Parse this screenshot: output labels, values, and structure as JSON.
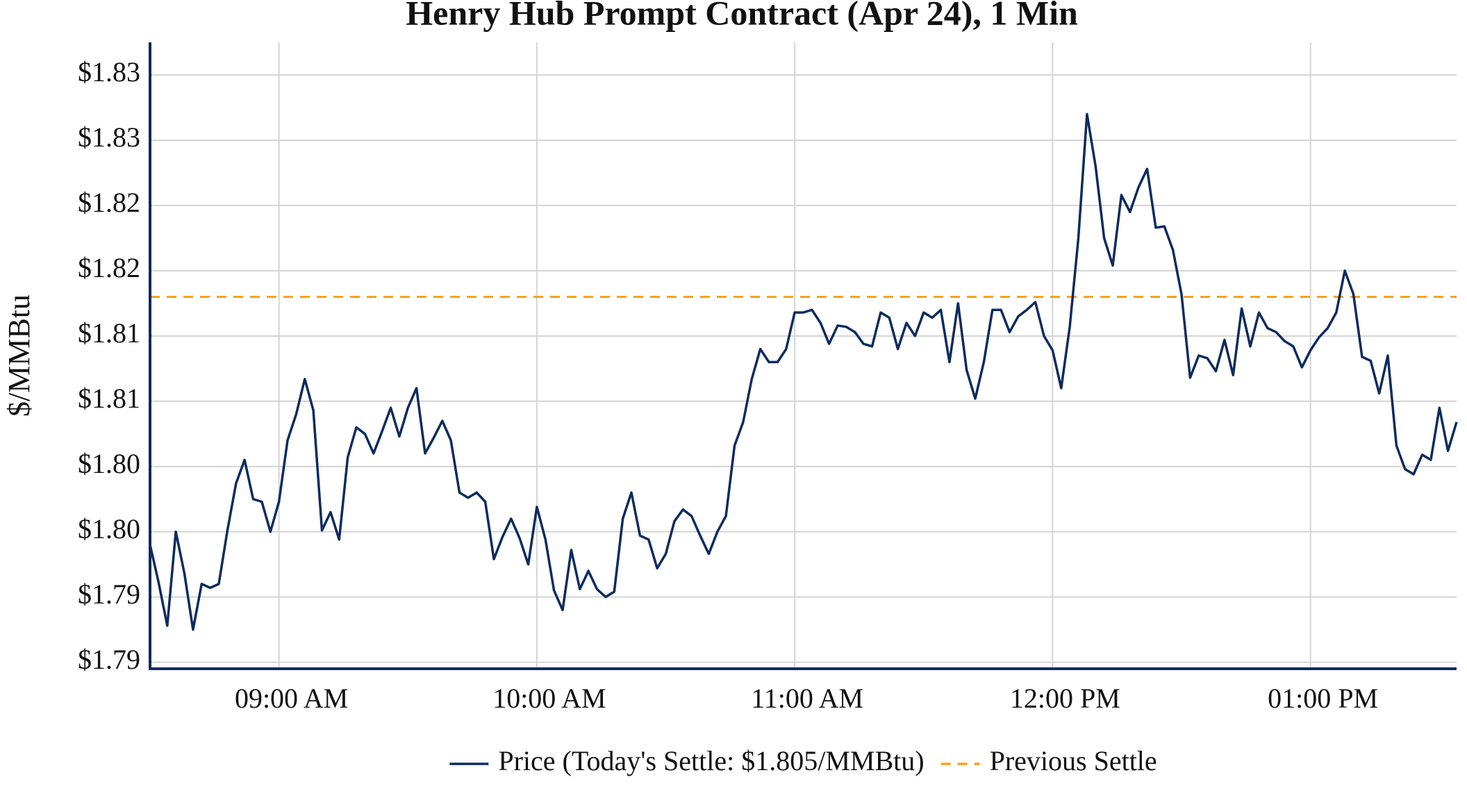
{
  "chart_data": {
    "type": "line",
    "title": "Henry Hub Prompt Contract (Apr 24), 1 Min",
    "y_label": "$/MMBtu",
    "x": [
      "08:30",
      "08:32",
      "08:34",
      "08:36",
      "08:38",
      "08:40",
      "08:42",
      "08:44",
      "08:46",
      "08:48",
      "08:50",
      "08:52",
      "08:54",
      "08:56",
      "08:58",
      "09:00",
      "09:02",
      "09:04",
      "09:06",
      "09:08",
      "09:10",
      "09:12",
      "09:14",
      "09:16",
      "09:18",
      "09:20",
      "09:22",
      "09:24",
      "09:26",
      "09:28",
      "09:30",
      "09:32",
      "09:34",
      "09:36",
      "09:38",
      "09:40",
      "09:42",
      "09:44",
      "09:46",
      "09:48",
      "09:50",
      "09:52",
      "09:54",
      "09:56",
      "09:58",
      "10:00",
      "10:02",
      "10:04",
      "10:06",
      "10:08",
      "10:10",
      "10:12",
      "10:14",
      "10:16",
      "10:18",
      "10:20",
      "10:22",
      "10:24",
      "10:26",
      "10:28",
      "10:30",
      "10:32",
      "10:34",
      "10:36",
      "10:38",
      "10:40",
      "10:42",
      "10:44",
      "10:46",
      "10:48",
      "10:50",
      "10:52",
      "10:54",
      "10:56",
      "10:58",
      "11:00",
      "11:02",
      "11:04",
      "11:06",
      "11:08",
      "11:10",
      "11:12",
      "11:14",
      "11:16",
      "11:18",
      "11:20",
      "11:22",
      "11:24",
      "11:26",
      "11:28",
      "11:30",
      "11:32",
      "11:34",
      "11:36",
      "11:38",
      "11:40",
      "11:42",
      "11:44",
      "11:46",
      "11:48",
      "11:50",
      "11:52",
      "11:54",
      "11:56",
      "11:58",
      "12:00",
      "12:02",
      "12:04",
      "12:06",
      "12:08",
      "12:10",
      "12:12",
      "12:14",
      "12:16",
      "12:18",
      "12:20",
      "12:22",
      "12:24",
      "12:26",
      "12:28",
      "12:30",
      "12:32",
      "12:34",
      "12:36",
      "12:38",
      "12:40",
      "12:42",
      "12:44",
      "12:46",
      "12:48",
      "12:50",
      "12:52",
      "12:54",
      "12:56",
      "12:58",
      "13:00",
      "13:02",
      "13:04",
      "13:06",
      "13:08",
      "13:10",
      "13:12",
      "13:14",
      "13:16",
      "13:18",
      "13:20",
      "13:22",
      "13:24",
      "13:26",
      "13:28",
      "13:30",
      "13:32",
      "13:34"
    ],
    "series": [
      {
        "name": "Price (Today's Settle: $1.805/MMBtu)",
        "color": "#0d2b5e",
        "values": [
          1.7965,
          1.7936,
          1.7903,
          1.7975,
          1.7943,
          1.79,
          1.7935,
          1.7932,
          1.7935,
          1.7976,
          1.8012,
          1.803,
          1.8,
          1.7998,
          1.7975,
          1.7998,
          1.8045,
          1.8065,
          1.8092,
          1.8068,
          1.7976,
          1.799,
          1.7969,
          1.8032,
          1.8055,
          1.805,
          1.8035,
          1.8052,
          1.807,
          1.8048,
          1.807,
          1.8085,
          1.8035,
          1.8047,
          1.806,
          1.8045,
          1.8005,
          1.8001,
          1.8005,
          1.7998,
          1.7954,
          1.7971,
          1.7985,
          1.797,
          1.795,
          1.7994,
          1.7969,
          1.793,
          1.7915,
          1.7961,
          1.7931,
          1.7945,
          1.7931,
          1.7925,
          1.7929,
          1.7985,
          1.8005,
          1.7972,
          1.7969,
          1.7947,
          1.7958,
          1.7983,
          1.7992,
          1.7987,
          1.7972,
          1.7958,
          1.7975,
          1.7987,
          1.8041,
          1.8059,
          1.8092,
          1.8115,
          1.8105,
          1.8105,
          1.8115,
          1.8143,
          1.8143,
          1.8145,
          1.8135,
          1.8119,
          1.8133,
          1.8132,
          1.8128,
          1.8119,
          1.8117,
          1.8143,
          1.8139,
          1.8115,
          1.8135,
          1.8125,
          1.8143,
          1.8139,
          1.8145,
          1.8105,
          1.815,
          1.8099,
          1.8077,
          1.8105,
          1.8145,
          1.8145,
          1.8128,
          1.814,
          1.8145,
          1.8151,
          1.8125,
          1.8114,
          1.8085,
          1.8132,
          1.82,
          1.8295,
          1.8255,
          1.82,
          1.8179,
          1.8233,
          1.822,
          1.8239,
          1.8253,
          1.8208,
          1.8209,
          1.8191,
          1.8157,
          1.8093,
          1.811,
          1.8108,
          1.8098,
          1.8122,
          1.8095,
          1.8146,
          1.8117,
          1.8143,
          1.8131,
          1.8128,
          1.8121,
          1.8117,
          1.8101,
          1.8114,
          1.8124,
          1.8131,
          1.8143,
          1.8175,
          1.8157,
          1.8109,
          1.8106,
          1.8081,
          1.811,
          1.8041,
          1.8023,
          1.8019,
          1.8034,
          1.803,
          1.807,
          1.8037,
          1.8059
        ]
      }
    ],
    "reference_lines": [
      {
        "name": "Previous Settle",
        "value": 1.8155,
        "color": "#f5a21b",
        "dash": true
      }
    ],
    "xlim": [
      "08:30",
      "13:34"
    ],
    "xticks": [
      {
        "value": "09:00",
        "label": "09:00 AM"
      },
      {
        "value": "10:00",
        "label": "10:00 AM"
      },
      {
        "value": "11:00",
        "label": "11:00 AM"
      },
      {
        "value": "12:00",
        "label": "12:00 PM"
      },
      {
        "value": "13:00",
        "label": "01:00 PM"
      }
    ],
    "ylim": [
      1.787,
      1.835
    ],
    "yticks": [
      {
        "value": 1.7875,
        "label": "$1.79"
      },
      {
        "value": 1.7925,
        "label": "$1.79"
      },
      {
        "value": 1.7975,
        "label": "$1.80"
      },
      {
        "value": 1.8025,
        "label": "$1.80"
      },
      {
        "value": 1.8075,
        "label": "$1.81"
      },
      {
        "value": 1.8125,
        "label": "$1.81"
      },
      {
        "value": 1.8175,
        "label": "$1.82"
      },
      {
        "value": 1.8225,
        "label": "$1.82"
      },
      {
        "value": 1.8275,
        "label": "$1.83"
      },
      {
        "value": 1.8325,
        "label": "$1.83"
      }
    ],
    "grid": true,
    "legend": "bottom"
  }
}
